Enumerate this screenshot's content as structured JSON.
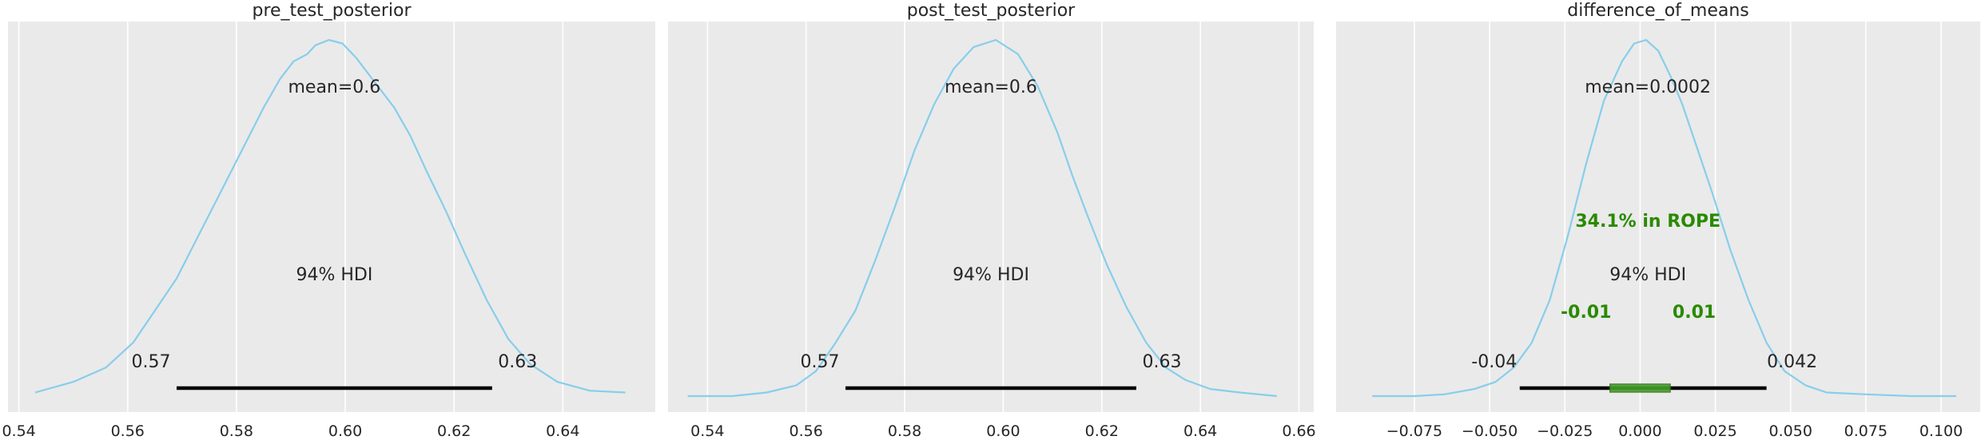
{
  "chart_data": [
    {
      "type": "area",
      "title": "pre_test_posterior",
      "xlim": [
        0.538,
        0.657
      ],
      "xticks": [
        0.54,
        0.56,
        0.58,
        0.6,
        0.62,
        0.64
      ],
      "xtick_labels": [
        "0.54",
        "0.56",
        "0.58",
        "0.60",
        "0.62",
        "0.64"
      ],
      "grid": "vertical",
      "density": {
        "x": [
          0.543,
          0.55,
          0.556,
          0.561,
          0.565,
          0.569,
          0.573,
          0.577,
          0.581,
          0.585,
          0.588,
          0.5905,
          0.593,
          0.5945,
          0.597,
          0.5995,
          0.602,
          0.606,
          0.609,
          0.612,
          0.615,
          0.6185,
          0.622,
          0.626,
          0.63,
          0.634,
          0.639,
          0.645,
          0.6515
        ],
        "y": [
          0.01,
          0.04,
          0.08,
          0.15,
          0.24,
          0.33,
          0.45,
          0.57,
          0.69,
          0.81,
          0.89,
          0.94,
          0.96,
          0.985,
          1.0,
          0.99,
          0.95,
          0.87,
          0.81,
          0.73,
          0.63,
          0.52,
          0.4,
          0.27,
          0.16,
          0.09,
          0.04,
          0.015,
          0.01
        ]
      },
      "mean_label": "mean=0.6",
      "hdi_label": "94% HDI",
      "hdi": [
        0.569,
        0.627
      ],
      "hdi_low_label": "0.57",
      "hdi_high_label": "0.63"
    },
    {
      "type": "area",
      "title": "post_test_posterior",
      "xlim": [
        0.532,
        0.663
      ],
      "xticks": [
        0.54,
        0.56,
        0.58,
        0.6,
        0.62,
        0.64,
        0.66
      ],
      "xtick_labels": [
        "0.54",
        "0.56",
        "0.58",
        "0.60",
        "0.62",
        "0.64",
        "0.66"
      ],
      "grid": "vertical",
      "density": {
        "x": [
          0.536,
          0.545,
          0.552,
          0.558,
          0.562,
          0.566,
          0.57,
          0.574,
          0.578,
          0.582,
          0.586,
          0.59,
          0.594,
          0.5985,
          0.603,
          0.607,
          0.611,
          0.614,
          0.617,
          0.621,
          0.625,
          0.629,
          0.633,
          0.637,
          0.642,
          0.648,
          0.6555
        ],
        "y": [
          0.0,
          0.0,
          0.01,
          0.03,
          0.07,
          0.15,
          0.24,
          0.38,
          0.53,
          0.69,
          0.82,
          0.92,
          0.98,
          1.0,
          0.96,
          0.87,
          0.74,
          0.62,
          0.51,
          0.37,
          0.25,
          0.15,
          0.08,
          0.045,
          0.02,
          0.01,
          0.0
        ]
      },
      "mean_label": "mean=0.6",
      "hdi_label": "94% HDI",
      "hdi": [
        0.568,
        0.627
      ],
      "hdi_low_label": "0.57",
      "hdi_high_label": "0.63"
    },
    {
      "type": "area",
      "title": "difference_of_means",
      "xlim": [
        -0.101,
        0.113
      ],
      "xticks": [
        -0.075,
        -0.05,
        -0.025,
        0.0,
        0.025,
        0.05,
        0.075,
        0.1
      ],
      "xtick_labels": [
        "−0.075",
        "−0.050",
        "−0.025",
        "0.000",
        "0.025",
        "0.050",
        "0.075",
        "0.100"
      ],
      "grid": "vertical",
      "density": {
        "x": [
          -0.089,
          -0.075,
          -0.065,
          -0.055,
          -0.048,
          -0.042,
          -0.036,
          -0.03,
          -0.024,
          -0.018,
          -0.012,
          -0.006,
          -0.002,
          0.002,
          0.006,
          0.01,
          0.014,
          0.018,
          0.024,
          0.03,
          0.036,
          0.042,
          0.048,
          0.055,
          0.062,
          0.075,
          0.09,
          0.105
        ],
        "y": [
          0.0,
          0.0,
          0.005,
          0.02,
          0.04,
          0.08,
          0.15,
          0.27,
          0.45,
          0.65,
          0.83,
          0.94,
          0.99,
          1.0,
          0.97,
          0.9,
          0.82,
          0.72,
          0.57,
          0.41,
          0.27,
          0.15,
          0.07,
          0.03,
          0.01,
          0.005,
          0.0,
          0.0
        ]
      },
      "mean_label": "mean=0.0002",
      "hdi_label": "94% HDI",
      "hdi": [
        -0.04,
        0.042
      ],
      "hdi_low_label": "-0.04",
      "hdi_high_label": "0.042",
      "rope": [
        -0.01,
        0.01
      ],
      "rope_label": "34.1% in ROPE",
      "rope_low_label": "-0.01",
      "rope_high_label": "0.01"
    }
  ],
  "colors": {
    "background": "#eaeaea",
    "grid": "#ffffff",
    "kde": "#87ceeb",
    "hdi": "#000000",
    "rope_text": "#2a8a00",
    "rope_fill": "#44a02c",
    "rope_edge": "#3a7a20"
  }
}
